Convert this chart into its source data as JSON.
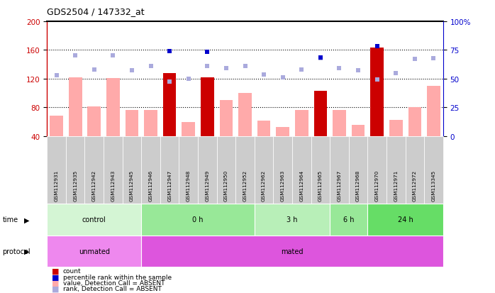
{
  "title": "GDS2504 / 147332_at",
  "samples": [
    "GSM112931",
    "GSM112935",
    "GSM112942",
    "GSM112943",
    "GSM112945",
    "GSM112946",
    "GSM112947",
    "GSM112948",
    "GSM112949",
    "GSM112950",
    "GSM112952",
    "GSM112962",
    "GSM112963",
    "GSM112964",
    "GSM112965",
    "GSM112967",
    "GSM112968",
    "GSM112970",
    "GSM112971",
    "GSM112972",
    "GSM113345"
  ],
  "bar_values": [
    68,
    122,
    81,
    121,
    76,
    76,
    128,
    59,
    122,
    90,
    100,
    61,
    52,
    76,
    103,
    76,
    55,
    163,
    62,
    80,
    110
  ],
  "bar_dark": [
    false,
    false,
    false,
    false,
    false,
    false,
    true,
    false,
    true,
    false,
    false,
    false,
    false,
    false,
    true,
    false,
    false,
    true,
    false,
    false,
    false
  ],
  "rank_values": [
    125,
    152,
    133,
    152,
    132,
    138,
    116,
    120,
    138,
    135,
    138,
    126,
    122,
    133,
    149,
    135,
    132,
    119,
    128,
    148,
    149
  ],
  "percentile_values": [
    null,
    null,
    null,
    null,
    null,
    null,
    158,
    null,
    157,
    null,
    null,
    null,
    null,
    null,
    150,
    null,
    null,
    165,
    null,
    null,
    null
  ],
  "ylim_left": [
    40,
    200
  ],
  "ylim_right": [
    0,
    100
  ],
  "yticks_left": [
    40,
    80,
    120,
    160,
    200
  ],
  "yticks_right": [
    0,
    25,
    50,
    75,
    100
  ],
  "groups_time": [
    {
      "label": "control",
      "start": 0,
      "end": 5,
      "color": "#d4f5d4"
    },
    {
      "label": "0 h",
      "start": 5,
      "end": 11,
      "color": "#98e898"
    },
    {
      "label": "3 h",
      "start": 11,
      "end": 15,
      "color": "#b8efb8"
    },
    {
      "label": "6 h",
      "start": 15,
      "end": 17,
      "color": "#98e898"
    },
    {
      "label": "24 h",
      "start": 17,
      "end": 21,
      "color": "#66dd66"
    }
  ],
  "groups_protocol": [
    {
      "label": "unmated",
      "start": 0,
      "end": 5,
      "color": "#ee88ee"
    },
    {
      "label": "mated",
      "start": 5,
      "end": 21,
      "color": "#dd55dd"
    }
  ],
  "bar_color_dark": "#cc0000",
  "bar_color_light": "#ffaaaa",
  "rank_color": "#aaaadd",
  "percentile_color": "#0000cc",
  "bg_color": "#ffffff",
  "left_axis_color": "#cc0000",
  "right_axis_color": "#0000cc",
  "tick_bg_color": "#cccccc",
  "chart_bg_color": "#ffffff"
}
